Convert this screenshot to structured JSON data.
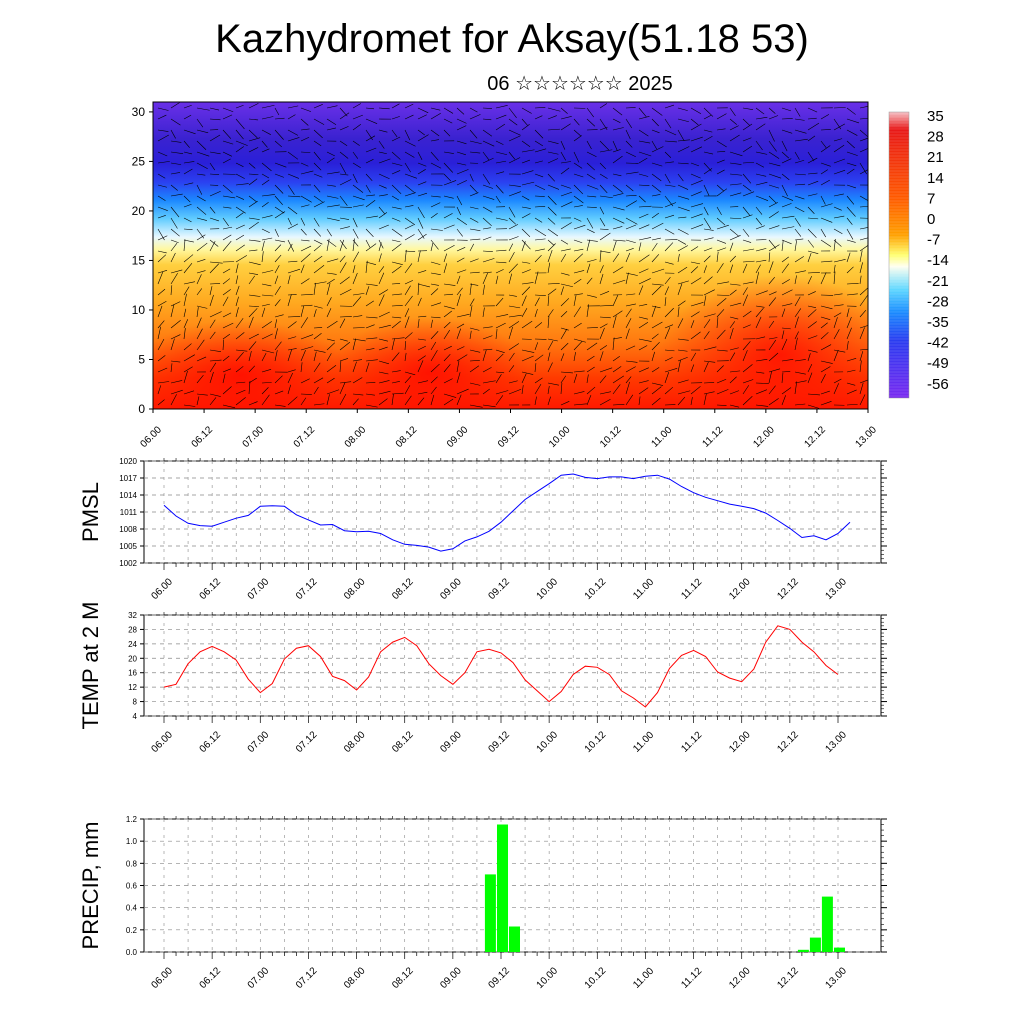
{
  "title": "Kazhydromet for Aksay(51.18 53)",
  "subtitle": "06 ☆☆☆☆☆☆ 2025",
  "time_labels": [
    "06.00",
    "06.12",
    "07.00",
    "07.12",
    "08.00",
    "08.12",
    "09.00",
    "09.12",
    "10.00",
    "10.12",
    "11.00",
    "11.12",
    "12.00",
    "12.12",
    "13.00"
  ],
  "colors": {
    "pmsl_line": "#0000ff",
    "temp_line": "#ff0000",
    "precip_bar": "#00ff00",
    "vectors": "#000000",
    "grid": "#888888"
  },
  "chart_data": [
    {
      "type": "heatmap",
      "name": "cross-section",
      "y_ticks": [
        0,
        5,
        10,
        15,
        20,
        25,
        30
      ],
      "ylim": [
        0,
        31
      ],
      "x_labels": [
        "06.00",
        "06.12",
        "07.00",
        "07.12",
        "08.00",
        "08.12",
        "09.00",
        "09.12",
        "10.00",
        "10.12",
        "11.00",
        "11.12",
        "12.00",
        "12.12",
        "13.00"
      ],
      "colorbar_labels": [
        "35",
        "28",
        "21",
        "14",
        "7",
        "0",
        "-7",
        "-14",
        "-21",
        "-28",
        "-35",
        "-42",
        "-49",
        "-56"
      ],
      "colorbar_range": [
        -63,
        42
      ]
    },
    {
      "type": "line",
      "ylabel": "PMSL",
      "ylim": [
        1002,
        1020
      ],
      "y_ticks": [
        1002,
        1005,
        1008,
        1011,
        1014,
        1017,
        1020
      ],
      "x_labels": [
        "06.00",
        "06.12",
        "07.00",
        "07.12",
        "08.00",
        "08.12",
        "09.00",
        "09.12",
        "10.00",
        "10.12",
        "11.00",
        "11.12",
        "12.00",
        "12.12",
        "13.00"
      ],
      "values": [
        1012.2,
        1010.3,
        1009,
        1008.6,
        1008.5,
        1009.2,
        1009.9,
        1010.4,
        1012,
        1012.1,
        1012,
        1010.5,
        1009.6,
        1008.7,
        1008.8,
        1007.7,
        1007.5,
        1007.6,
        1007.2,
        1006.1,
        1005.3,
        1005.1,
        1004.8,
        1004.1,
        1004.5,
        1005.9,
        1006.6,
        1007.6,
        1009.2,
        1011.2,
        1013.2,
        1014.6,
        1016,
        1017.5,
        1017.7,
        1017.1,
        1016.9,
        1017.2,
        1017.2,
        1016.9,
        1017.3,
        1017.5,
        1016.8,
        1015.5,
        1014.4,
        1013.6,
        1013,
        1012.4,
        1012,
        1011.6,
        1010.8,
        1009.5,
        1008.1,
        1006.5,
        1006.8,
        1006.1,
        1007.2,
        1009.2
      ]
    },
    {
      "type": "line",
      "ylabel": "TEMP at 2 M",
      "ylim": [
        4,
        32
      ],
      "y_ticks": [
        4,
        8,
        12,
        16,
        20,
        24,
        28,
        32
      ],
      "x_labels": [
        "06.00",
        "06.12",
        "07.00",
        "07.12",
        "08.00",
        "08.12",
        "09.00",
        "09.12",
        "10.00",
        "10.12",
        "11.00",
        "11.12",
        "12.00",
        "12.12",
        "13.00"
      ],
      "values": [
        12,
        12.8,
        18.5,
        21.8,
        23.3,
        21.8,
        19.5,
        14.2,
        10.5,
        13,
        19.8,
        22.8,
        23.5,
        20.5,
        15,
        13.8,
        11.2,
        14.8,
        21.8,
        24.5,
        25.8,
        23.5,
        18.5,
        15.2,
        12.8,
        16,
        21.8,
        22.5,
        21.5,
        18.8,
        14,
        11,
        8,
        10.8,
        15.5,
        17.8,
        17.5,
        15.5,
        11,
        9,
        6.5,
        10.5,
        17.2,
        20.8,
        22.2,
        20.5,
        16.2,
        14.5,
        13.5,
        17,
        24.5,
        29,
        28,
        24.5,
        21.8,
        18,
        15.5
      ]
    },
    {
      "type": "bar",
      "ylabel": "PRECIP, mm",
      "ylim": [
        0,
        1.2
      ],
      "y_ticks": [
        "0.0",
        "0.2",
        "0.4",
        "0.6",
        "0.8",
        "1.0",
        "1.2"
      ],
      "x_labels": [
        "06.00",
        "06.12",
        "07.00",
        "07.12",
        "08.00",
        "08.12",
        "09.00",
        "09.12",
        "10.00",
        "10.12",
        "11.00",
        "11.12",
        "12.00",
        "12.12",
        "13.00"
      ],
      "bars": [
        {
          "t": 27,
          "value": 0.7
        },
        {
          "t": 28,
          "value": 1.15
        },
        {
          "t": 29,
          "value": 0.23
        },
        {
          "t": 53,
          "value": 0.02
        },
        {
          "t": 54,
          "value": 0.13
        },
        {
          "t": 55,
          "value": 0.5
        },
        {
          "t": 56,
          "value": 0.04
        }
      ]
    }
  ]
}
